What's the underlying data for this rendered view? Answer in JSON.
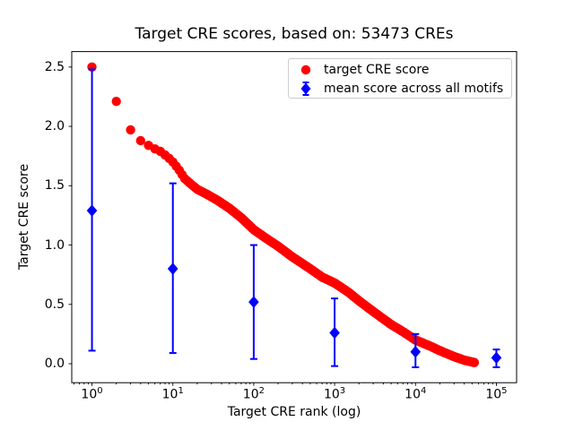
{
  "figure": {
    "background": "#ffffff"
  },
  "chart_data": {
    "type": "scatter",
    "title": "Target CRE scores, based on: 53473 CREs",
    "xlabel": "Target CRE rank (log)",
    "ylabel": "Target CRE score",
    "xscale": "log",
    "xlim_log10": [
      -0.25,
      5.25
    ],
    "ylim": [
      -0.16,
      2.63
    ],
    "grid": false,
    "legend_position": "upper right",
    "xticks": [
      {
        "base": "10",
        "exp": "0",
        "log": 0
      },
      {
        "base": "10",
        "exp": "1",
        "log": 1
      },
      {
        "base": "10",
        "exp": "2",
        "log": 2
      },
      {
        "base": "10",
        "exp": "3",
        "log": 3
      },
      {
        "base": "10",
        "exp": "4",
        "log": 4
      },
      {
        "base": "10",
        "exp": "5",
        "log": 5
      }
    ],
    "yticks": [
      {
        "label": "0.0",
        "value": 0.0
      },
      {
        "label": "0.5",
        "value": 0.5
      },
      {
        "label": "1.0",
        "value": 1.0
      },
      {
        "label": "1.5",
        "value": 1.5
      },
      {
        "label": "2.0",
        "value": 2.0
      },
      {
        "label": "2.5",
        "value": 2.5
      }
    ],
    "series": [
      {
        "name": "target CRE score",
        "color": "#ff0000",
        "marker": "circle",
        "total_points": 53473,
        "anchors_rank_score": [
          [
            1,
            2.5
          ],
          [
            2,
            2.21
          ],
          [
            3,
            1.97
          ],
          [
            4,
            1.88
          ],
          [
            5,
            1.84
          ],
          [
            6,
            1.81
          ],
          [
            7,
            1.79
          ],
          [
            8,
            1.76
          ],
          [
            9,
            1.73
          ],
          [
            10,
            1.7
          ],
          [
            12,
            1.63
          ],
          [
            14,
            1.56
          ],
          [
            17,
            1.51
          ],
          [
            20,
            1.47
          ],
          [
            26,
            1.43
          ],
          [
            35,
            1.38
          ],
          [
            50,
            1.31
          ],
          [
            70,
            1.23
          ],
          [
            100,
            1.13
          ],
          [
            140,
            1.06
          ],
          [
            200,
            0.99
          ],
          [
            300,
            0.9
          ],
          [
            500,
            0.8
          ],
          [
            700,
            0.73
          ],
          [
            1000,
            0.68
          ],
          [
            1500,
            0.6
          ],
          [
            2000,
            0.53
          ],
          [
            3000,
            0.44
          ],
          [
            5000,
            0.33
          ],
          [
            7000,
            0.27
          ],
          [
            10000,
            0.2
          ],
          [
            15000,
            0.15
          ],
          [
            20000,
            0.11
          ],
          [
            30000,
            0.06
          ],
          [
            40000,
            0.03
          ],
          [
            53473,
            0.01
          ]
        ]
      },
      {
        "name": "mean score across all motifs",
        "color": "#0000ff",
        "marker": "diamond",
        "error_bars": true,
        "points": [
          {
            "x": 1,
            "mean": 1.29,
            "lo": 0.11,
            "hi": 2.48
          },
          {
            "x": 10,
            "mean": 0.8,
            "lo": 0.09,
            "hi": 1.52
          },
          {
            "x": 100,
            "mean": 0.52,
            "lo": 0.04,
            "hi": 1.0
          },
          {
            "x": 1000,
            "mean": 0.26,
            "lo": -0.02,
            "hi": 0.55
          },
          {
            "x": 10000,
            "mean": 0.1,
            "lo": -0.03,
            "hi": 0.25
          },
          {
            "x": 100000,
            "mean": 0.05,
            "lo": -0.03,
            "hi": 0.12
          }
        ]
      }
    ]
  }
}
